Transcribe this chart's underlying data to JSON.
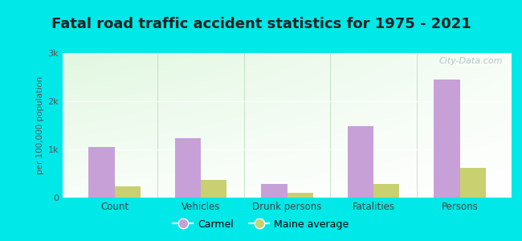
{
  "title": "Fatal road traffic accident statistics for 1975 - 2021",
  "categories": [
    "Count",
    "Vehicles",
    "Drunk persons",
    "Fatalities",
    "Persons"
  ],
  "carmel_values": [
    1050,
    1230,
    290,
    1480,
    2450
  ],
  "maine_values": [
    240,
    370,
    100,
    280,
    610
  ],
  "carmel_color": "#c8a0d8",
  "maine_color": "#c8d070",
  "ylim": [
    0,
    3000
  ],
  "yticks": [
    0,
    1000,
    2000,
    3000
  ],
  "ytick_labels": [
    "0",
    "1k",
    "2k",
    "3k"
  ],
  "ylabel": "per 100,000 population",
  "bg_color": "#00e8e8",
  "legend_carmel": "Carmel",
  "legend_maine": "Maine average",
  "bar_width": 0.3,
  "title_fontsize": 13,
  "watermark": "City-Data.com"
}
